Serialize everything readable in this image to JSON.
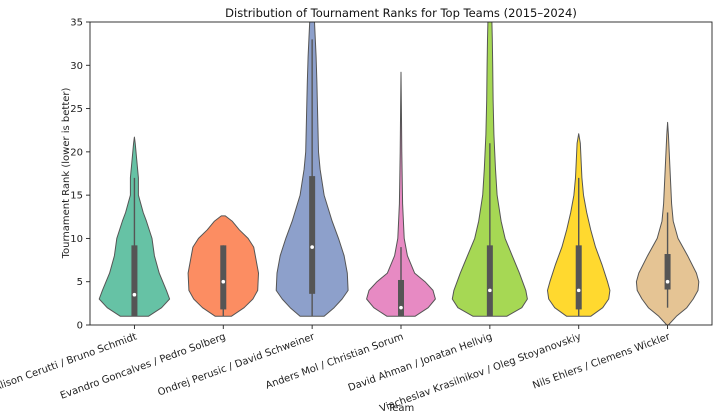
{
  "chart_data": {
    "type": "violin",
    "title": "Distribution of Tournament Ranks for Top Teams (2015–2024)",
    "xlabel": "Team",
    "ylabel": "Tournament Rank (lower is better)",
    "ylim": [
      0,
      35
    ],
    "yticks": [
      0,
      5,
      10,
      15,
      20,
      25,
      30,
      35
    ],
    "grid": false,
    "series": [
      {
        "name": "Alison Cerutti / Bruno Schmidt",
        "color": "#66c2a5",
        "density": [
          [
            1,
            0.35
          ],
          [
            2,
            0.68
          ],
          [
            3,
            0.88
          ],
          [
            4,
            0.8
          ],
          [
            6,
            0.62
          ],
          [
            8,
            0.5
          ],
          [
            10,
            0.44
          ],
          [
            12,
            0.3
          ],
          [
            13,
            0.22
          ],
          [
            15,
            0.1
          ],
          [
            17,
            0.1
          ],
          [
            19,
            0.06
          ],
          [
            21,
            0.02
          ],
          [
            21.7,
            0
          ]
        ],
        "whisker": [
          1,
          17
        ],
        "box": [
          1,
          9.2
        ],
        "median": 3.5
      },
      {
        "name": "Evandro Goncalves / Pedro Solberg",
        "color": "#fc8d62",
        "density": [
          [
            1,
            0.2
          ],
          [
            2,
            0.52
          ],
          [
            3,
            0.74
          ],
          [
            4,
            0.86
          ],
          [
            6,
            0.88
          ],
          [
            8,
            0.8
          ],
          [
            9,
            0.76
          ],
          [
            10,
            0.62
          ],
          [
            11,
            0.4
          ],
          [
            12,
            0.22
          ],
          [
            12.6,
            0.05
          ]
        ],
        "whisker": [
          1,
          9.2
        ],
        "box": [
          1.8,
          9.2
        ],
        "median": 5
      },
      {
        "name": "Ondrej Perusic / David Schweiner",
        "color": "#8da0cb",
        "density": [
          [
            1,
            0.3
          ],
          [
            2,
            0.55
          ],
          [
            3,
            0.75
          ],
          [
            4,
            0.9
          ],
          [
            6,
            0.88
          ],
          [
            8,
            0.8
          ],
          [
            10,
            0.66
          ],
          [
            12,
            0.5
          ],
          [
            15,
            0.3
          ],
          [
            18,
            0.2
          ],
          [
            20,
            0.16
          ],
          [
            24,
            0.14
          ],
          [
            28,
            0.12
          ],
          [
            31,
            0.1
          ],
          [
            33,
            0.08
          ],
          [
            35,
            0.06
          ]
        ],
        "whisker": [
          1,
          33
        ],
        "box": [
          3.6,
          17.2
        ],
        "median": 9
      },
      {
        "name": "Anders Mol / Christian Sorum",
        "color": "#e78ac3",
        "density": [
          [
            1,
            0.35
          ],
          [
            2,
            0.68
          ],
          [
            3,
            0.86
          ],
          [
            4,
            0.8
          ],
          [
            5,
            0.6
          ],
          [
            6,
            0.34
          ],
          [
            8,
            0.16
          ],
          [
            10,
            0.08
          ],
          [
            14,
            0.04
          ],
          [
            20,
            0.02
          ],
          [
            25,
            0.01
          ],
          [
            29.2,
            0
          ]
        ],
        "whisker": [
          1,
          9
        ],
        "box": [
          1,
          5.2
        ],
        "median": 2
      },
      {
        "name": "David Ahman / Jonatan Hellvig",
        "color": "#a6d854",
        "density": [
          [
            1,
            0.42
          ],
          [
            2,
            0.8
          ],
          [
            3,
            0.94
          ],
          [
            4,
            0.9
          ],
          [
            6,
            0.74
          ],
          [
            8,
            0.56
          ],
          [
            10,
            0.38
          ],
          [
            12,
            0.28
          ],
          [
            15,
            0.18
          ],
          [
            18,
            0.14
          ],
          [
            22,
            0.1
          ],
          [
            26,
            0.08
          ],
          [
            30,
            0.07
          ],
          [
            33,
            0.06
          ],
          [
            35,
            0.05
          ]
        ],
        "whisker": [
          1,
          21
        ],
        "box": [
          1,
          9.2
        ],
        "median": 4
      },
      {
        "name": "Viacheslav Krasilnikov / Oleg Stoyanovskiy",
        "color": "#ffd92f",
        "density": [
          [
            1,
            0.3
          ],
          [
            2,
            0.6
          ],
          [
            3,
            0.75
          ],
          [
            4,
            0.78
          ],
          [
            5,
            0.72
          ],
          [
            7,
            0.58
          ],
          [
            9,
            0.42
          ],
          [
            11,
            0.3
          ],
          [
            13,
            0.2
          ],
          [
            15,
            0.12
          ],
          [
            17,
            0.08
          ],
          [
            19,
            0.06
          ],
          [
            21,
            0.04
          ],
          [
            22.1,
            0
          ]
        ],
        "whisker": [
          1,
          17
        ],
        "box": [
          1.8,
          9.2
        ],
        "median": 4
      },
      {
        "name": "Nils Ehlers / Clemens Wickler",
        "color": "#e5c494",
        "density": [
          [
            0,
            0.02
          ],
          [
            1,
            0.22
          ],
          [
            2,
            0.48
          ],
          [
            3,
            0.64
          ],
          [
            4,
            0.76
          ],
          [
            5,
            0.78
          ],
          [
            6,
            0.72
          ],
          [
            8,
            0.5
          ],
          [
            10,
            0.26
          ],
          [
            12,
            0.14
          ],
          [
            14,
            0.1
          ],
          [
            16,
            0.08
          ],
          [
            18,
            0.06
          ],
          [
            20,
            0.04
          ],
          [
            22,
            0.02
          ],
          [
            23.4,
            0
          ]
        ],
        "whisker": [
          2,
          13
        ],
        "box": [
          4.1,
          8.2
        ],
        "median": 5
      }
    ]
  }
}
